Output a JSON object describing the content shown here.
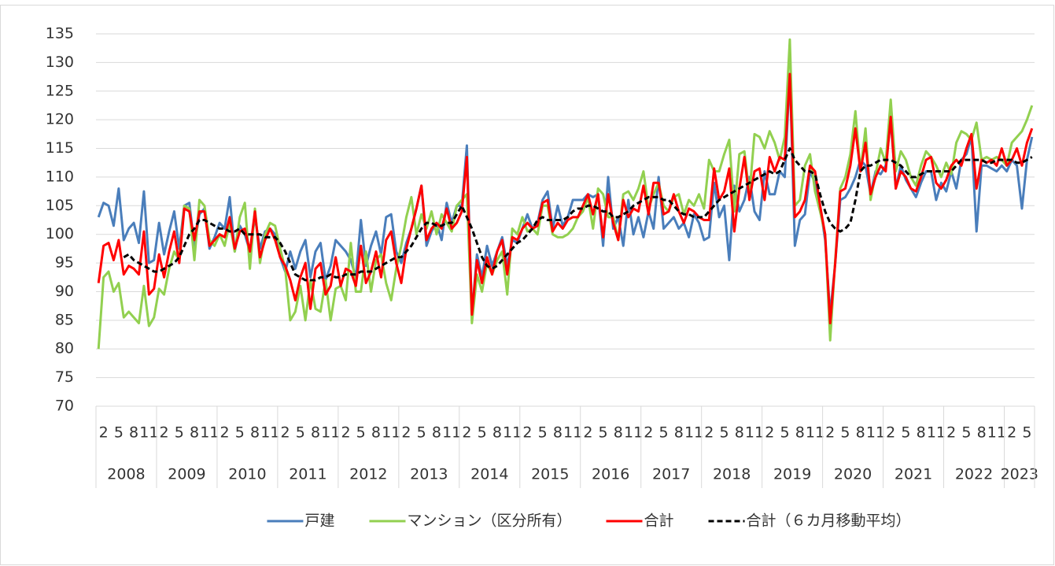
{
  "chart_data": {
    "type": "line",
    "categories": [
      null,
      "2",
      null,
      null,
      "5",
      null,
      null,
      "8",
      null,
      null,
      "11",
      null,
      null,
      "2",
      null,
      null,
      "5",
      null,
      null,
      "8",
      null,
      null,
      "11",
      null,
      null,
      "2",
      null,
      null,
      "5",
      null,
      null,
      "8",
      null,
      null,
      "11",
      null,
      null,
      "2",
      null,
      null,
      "5",
      null,
      null,
      "8",
      null,
      null,
      "11",
      null,
      null,
      "2",
      null,
      null,
      "5",
      null,
      null,
      "8",
      null,
      null,
      "11",
      null,
      null,
      "2",
      null,
      null,
      "5",
      null,
      null,
      "8",
      null,
      null,
      "11",
      null,
      null,
      "2",
      null,
      null,
      "5",
      null,
      null,
      "8",
      null,
      null,
      "11",
      null,
      null,
      "2",
      null,
      null,
      "5",
      null,
      null,
      "8",
      null,
      null,
      "11",
      null,
      null,
      "2",
      null,
      null,
      "5",
      null,
      null,
      "8",
      null,
      null,
      "11",
      null,
      null,
      "2",
      null,
      null,
      "5",
      null,
      null,
      "8",
      null,
      null,
      "11",
      null,
      null,
      "2",
      null,
      null,
      "5",
      null,
      null,
      "8",
      null,
      null,
      "11",
      null,
      null,
      "2",
      null,
      null,
      "5",
      null,
      null,
      "8",
      null,
      null,
      "11",
      null,
      null,
      "2",
      null,
      null,
      "5",
      null,
      null,
      "8",
      null,
      null,
      "11",
      null,
      null,
      "2",
      null,
      null,
      "5",
      null,
      null,
      "8",
      null,
      null,
      "11",
      null,
      null,
      "2",
      null,
      null,
      "5",
      null,
      null,
      "8",
      null,
      null,
      "11",
      null,
      null,
      "2",
      null,
      null,
      "5",
      null
    ],
    "years": [
      "2008",
      "2009",
      "2010",
      "2011",
      "2012",
      "2013",
      "2014",
      "2015",
      "2016",
      "2017",
      "2018",
      "2019",
      "2020",
      "2021",
      "2022",
      "2023"
    ],
    "ylim": [
      70,
      135
    ],
    "yticks": [
      70,
      75,
      80,
      85,
      90,
      95,
      100,
      105,
      110,
      115,
      120,
      125,
      130,
      135
    ],
    "grid": true,
    "series": [
      {
        "name": "戸建",
        "color": "#4a7ebb",
        "values": [
          103,
          105.5,
          105,
          101.5,
          108,
          99,
          101,
          102,
          98.5,
          107.5,
          95,
          95.5,
          102,
          96.5,
          100.5,
          104,
          97.5,
          105,
          105.5,
          98,
          103.5,
          104.5,
          97.5,
          99.5,
          102,
          101,
          106.5,
          97,
          101.5,
          100,
          97,
          103,
          97.5,
          100.5,
          101,
          100,
          96,
          93.5,
          97,
          94,
          97,
          99,
          92.5,
          97,
          98.5,
          92,
          94.5,
          99,
          98,
          97,
          95.5,
          92.5,
          102.5,
          94.5,
          98,
          100.5,
          96.5,
          103,
          103.5,
          97,
          95,
          98.5,
          101,
          104.5,
          108.5,
          98,
          100.5,
          102,
          99,
          105.5,
          102,
          105,
          105,
          115.5,
          86,
          96.5,
          92.5,
          98,
          94.5,
          97,
          99.5,
          94.5,
          99,
          98.5,
          101,
          103.5,
          101,
          102,
          106,
          107.5,
          101,
          105,
          101.5,
          103,
          106,
          106,
          106,
          107,
          106.5,
          107,
          98,
          110,
          101,
          103,
          98,
          106,
          100,
          103,
          99.5,
          104,
          101,
          110,
          101,
          102,
          103,
          101,
          102,
          99.5,
          103.5,
          102,
          99,
          99.5,
          109,
          103,
          105,
          95.5,
          108.5,
          104,
          106,
          110,
          104,
          102.5,
          111,
          107,
          107,
          111,
          110,
          128,
          98,
          102.5,
          103.5,
          111,
          109,
          105,
          99,
          86,
          95,
          106,
          106.5,
          108,
          110,
          113,
          112,
          107,
          111,
          110.5,
          112,
          120,
          108,
          112,
          109.5,
          108,
          106.5,
          109,
          111,
          111,
          106,
          109,
          107.5,
          111,
          108,
          113,
          114,
          117,
          100.5,
          112,
          112,
          111.5,
          111,
          112,
          111,
          113,
          112,
          104.5,
          113,
          117
        ]
      },
      {
        "name": "マンション（区分所有）",
        "color": "#92d050",
        "values": [
          80,
          92.5,
          93.5,
          90,
          91.5,
          85.5,
          86.5,
          85.5,
          84.5,
          91,
          84,
          85.5,
          90.5,
          89.5,
          94,
          97,
          95.5,
          105,
          104.5,
          95.5,
          106,
          105,
          99,
          98,
          100,
          98,
          102,
          97,
          103,
          105.5,
          94,
          104.5,
          95,
          100,
          102,
          101.5,
          97.5,
          94,
          85,
          86.5,
          91,
          85,
          92,
          87,
          86.5,
          92,
          85,
          90.5,
          91,
          88.5,
          98.5,
          90,
          90,
          97,
          90,
          95.5,
          96.5,
          91.5,
          88.5,
          94,
          98,
          103,
          106.5,
          100,
          103.5,
          101,
          104,
          100,
          103.5,
          102,
          100.5,
          105,
          106,
          107,
          84.5,
          93,
          90,
          95,
          93,
          95.5,
          97,
          89.5,
          101,
          100,
          103,
          100.5,
          101,
          100,
          105,
          105,
          100,
          99.5,
          99.5,
          100,
          101,
          103,
          104,
          106.5,
          101,
          108,
          107,
          103,
          103,
          99,
          107,
          107.5,
          106,
          108,
          111,
          104.5,
          107,
          109,
          105,
          104,
          106.5,
          107,
          103.5,
          106,
          105,
          107,
          104.5,
          113,
          111,
          111,
          114,
          116.5,
          104,
          114,
          114.5,
          107,
          117.5,
          117,
          115,
          118,
          116,
          113,
          117,
          134,
          105,
          106,
          112,
          114,
          107.5,
          104,
          100,
          81.5,
          95.5,
          108,
          110,
          114,
          121.5,
          111,
          118.5,
          106,
          110.5,
          115,
          112.5,
          123.5,
          111,
          114.5,
          113,
          110,
          108.5,
          112,
          114.5,
          113.5,
          112,
          110,
          112.5,
          110.5,
          116,
          118,
          117.5,
          116.5,
          119.5,
          113,
          113.5,
          113,
          113.5,
          113,
          112,
          116,
          117,
          118,
          120,
          122.5
        ]
      },
      {
        "name": "合計",
        "color": "#ff0000",
        "values": [
          91.5,
          98,
          98.5,
          95.5,
          99,
          93,
          94.5,
          94,
          93,
          100.5,
          89.5,
          90.5,
          96.5,
          92.5,
          97,
          100.5,
          95,
          104.5,
          104,
          99,
          104,
          104,
          98,
          99,
          100,
          99.5,
          103,
          97.5,
          100.5,
          101,
          97,
          104,
          96,
          99,
          101,
          99,
          96,
          94.5,
          92,
          88.5,
          92.5,
          95,
          87,
          94,
          95,
          89.5,
          91,
          96,
          91,
          94,
          93.5,
          91,
          98,
          91.5,
          93.5,
          97,
          92.5,
          99,
          100.5,
          95,
          91.5,
          97.5,
          101,
          104.5,
          108.5,
          99,
          101,
          102,
          101,
          104.5,
          101,
          102,
          104,
          113.5,
          86,
          95.5,
          91.5,
          96,
          93,
          97,
          99,
          93,
          99.5,
          99,
          101,
          102,
          101,
          101.5,
          105.5,
          106,
          100.5,
          102,
          101,
          102.5,
          103,
          103,
          105,
          107,
          103.5,
          107,
          99.5,
          107,
          102,
          99,
          106,
          103,
          104.5,
          104,
          108.5,
          103.5,
          109,
          109,
          103.5,
          104,
          107,
          104,
          102,
          104.5,
          104,
          103,
          102.5,
          102.5,
          111.5,
          106,
          107.5,
          111.5,
          100.5,
          108,
          113.5,
          106,
          111,
          111.5,
          106,
          113.5,
          111,
          113.5,
          113,
          128,
          103,
          104,
          106,
          112,
          111,
          105,
          100,
          84.5,
          95,
          107.5,
          108,
          112,
          118.5,
          111,
          116,
          107,
          110,
          112,
          111,
          120.5,
          108,
          111,
          110,
          108,
          107.5,
          110,
          113,
          113.5,
          109,
          108,
          109.5,
          112,
          113,
          112,
          115,
          117.5,
          108,
          113,
          112.5,
          113,
          112,
          115,
          112,
          113,
          115,
          112,
          116,
          118.5
        ]
      },
      {
        "name": "合計（６カ月移動平均）",
        "color": "#000000",
        "dashed": true,
        "values": [
          null,
          null,
          null,
          null,
          null,
          96,
          96.5,
          95.5,
          95,
          94.5,
          94,
          93.5,
          93.5,
          94,
          94.5,
          95,
          96,
          98,
          100,
          101,
          102.5,
          102.5,
          102,
          101.5,
          101,
          101,
          100.5,
          100.5,
          101,
          100,
          100,
          100,
          100,
          99.5,
          99.5,
          99.5,
          98.5,
          97,
          95,
          93,
          92.5,
          92,
          92,
          92,
          92.5,
          92.5,
          93,
          92.5,
          92.5,
          93,
          93,
          93,
          93.5,
          93.5,
          93.5,
          94,
          94.5,
          95,
          95.5,
          96,
          96,
          97,
          98,
          99.5,
          101,
          102,
          102,
          101.5,
          101.5,
          102,
          102,
          103.5,
          105,
          103,
          101,
          98.5,
          96,
          94.5,
          94,
          94.5,
          95.5,
          96.5,
          97.5,
          98.5,
          99,
          100,
          101,
          102.5,
          103,
          102.5,
          102.5,
          102.5,
          102.5,
          103,
          104,
          104.5,
          104.5,
          105,
          105,
          104.5,
          104,
          104,
          103,
          103,
          103.5,
          104,
          105,
          105.5,
          106,
          106.5,
          106.5,
          106.5,
          106,
          106,
          105,
          104,
          103.5,
          103.5,
          103,
          103,
          103,
          104,
          105,
          106,
          106.5,
          107,
          107.5,
          108,
          108.5,
          109,
          109.5,
          110,
          110.5,
          111,
          110.5,
          111,
          113,
          115,
          113,
          112,
          111,
          111,
          110.5,
          107,
          104,
          102,
          101,
          100.5,
          101,
          102,
          106,
          111,
          112,
          112,
          112.5,
          113,
          113,
          113,
          112.5,
          112,
          111,
          110,
          110,
          110.5,
          111,
          111,
          111,
          111,
          111,
          111,
          112,
          113,
          113,
          113,
          113,
          113,
          112.5,
          112.5,
          113,
          113,
          113,
          113,
          112.5,
          112.5,
          113,
          113.5
        ]
      }
    ]
  }
}
